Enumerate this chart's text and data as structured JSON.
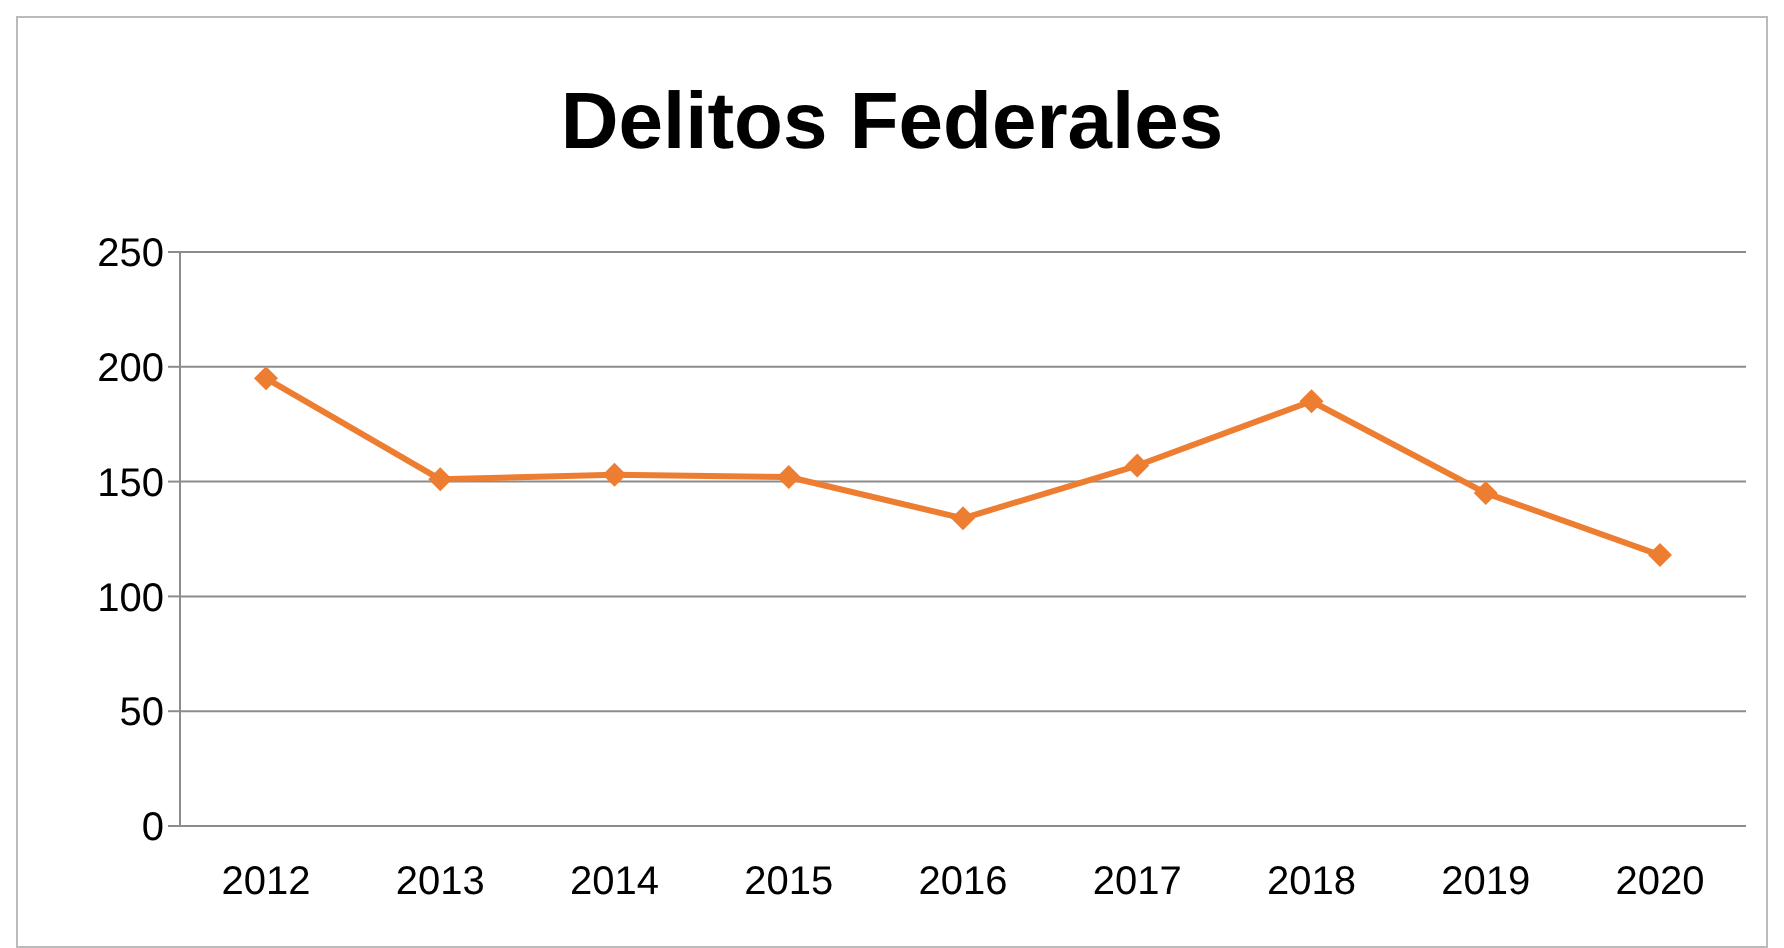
{
  "chart_data": {
    "type": "line",
    "title": "Delitos Federales",
    "categories": [
      "2012",
      "2013",
      "2014",
      "2015",
      "2016",
      "2017",
      "2018",
      "2019",
      "2020"
    ],
    "series": [
      {
        "color": "#ed7d31",
        "values": [
          195,
          151,
          153,
          152,
          134,
          157,
          185,
          145,
          118
        ]
      }
    ],
    "ylim": [
      0,
      250
    ],
    "yticks": [
      0,
      50,
      100,
      150,
      200,
      250
    ],
    "grid": "y",
    "marker": "diamond"
  }
}
